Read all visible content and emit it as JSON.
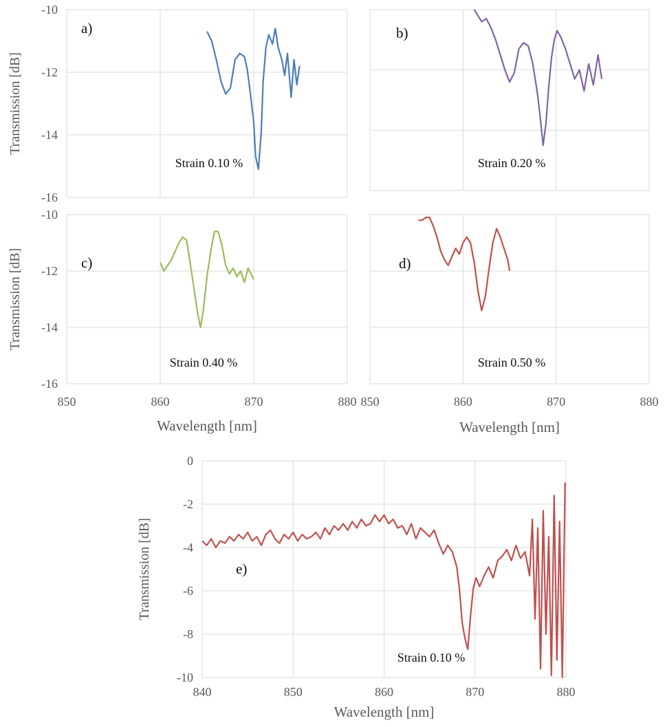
{
  "colors": {
    "grid": "#d9d9d9",
    "axis_text": "#595959"
  },
  "chart_data": [
    {
      "id": "a",
      "type": "line",
      "panel_label": "a)",
      "annotation": "Strain 0.10 %",
      "ylabel": "Transmission [dB]",
      "xlabel": "",
      "xlim": [
        850,
        880
      ],
      "ylim": [
        -16,
        -10
      ],
      "grid": true,
      "color": "#4a7ebb",
      "x_tick_labels": [],
      "y_tick_labels": [
        "-10",
        "-12",
        "-14",
        "-16"
      ],
      "series": [
        {
          "x": [
            865,
            865.5,
            866,
            866.5,
            867,
            867.5,
            868,
            868.5,
            869,
            869.3,
            869.6,
            870,
            870.2,
            870.5,
            870.8,
            871,
            871.3,
            871.6,
            872,
            872.3,
            872.6,
            873,
            873.3,
            873.6,
            874,
            874.3,
            874.6,
            874.9
          ],
          "y": [
            -10.7,
            -11.0,
            -11.6,
            -12.3,
            -12.7,
            -12.5,
            -11.6,
            -11.4,
            -11.5,
            -11.9,
            -12.6,
            -13.6,
            -14.7,
            -15.1,
            -13.9,
            -12.3,
            -11.2,
            -10.8,
            -11.1,
            -10.6,
            -11.2,
            -11.6,
            -12.1,
            -11.4,
            -12.8,
            -11.6,
            -12.4,
            -11.8
          ]
        }
      ]
    },
    {
      "id": "b",
      "type": "line",
      "panel_label": "b)",
      "annotation": "Strain 0.20 %",
      "ylabel": "",
      "xlabel": "",
      "xlim": [
        850,
        880
      ],
      "ylim": [
        -16,
        -10
      ],
      "grid": true,
      "color": "#8064a2",
      "x_tick_labels": [],
      "y_tick_labels": [],
      "series": [
        {
          "x": [
            861.2,
            861.6,
            862,
            862.5,
            863,
            863.5,
            864,
            864.5,
            865,
            865.5,
            866,
            866.5,
            867,
            867.5,
            868,
            868.3,
            868.6,
            868.9,
            869.2,
            869.5,
            869.8,
            870.1,
            870.5,
            871,
            871.5,
            872,
            872.5,
            873,
            873.5,
            874,
            874.5,
            874.9
          ],
          "y": [
            -10.0,
            -10.2,
            -10.4,
            -10.3,
            -10.6,
            -11.0,
            -11.5,
            -12.0,
            -12.4,
            -12.1,
            -11.3,
            -11.1,
            -11.2,
            -11.8,
            -12.8,
            -13.6,
            -14.5,
            -13.8,
            -12.6,
            -11.6,
            -11.0,
            -10.7,
            -10.9,
            -11.3,
            -11.8,
            -12.3,
            -12.0,
            -12.7,
            -11.8,
            -12.5,
            -11.5,
            -12.3
          ]
        }
      ]
    },
    {
      "id": "c",
      "type": "line",
      "panel_label": "c)",
      "annotation": "Strain 0.40 %",
      "ylabel": "Transmission [dB]",
      "xlabel": "",
      "xlim": [
        850,
        880
      ],
      "ylim": [
        -16,
        -10
      ],
      "grid": true,
      "color": "#9bbb59",
      "x_tick_labels": [],
      "y_tick_labels": [
        "-10",
        "-12",
        "-14",
        "-16"
      ],
      "series": [
        {
          "x": [
            860,
            860.4,
            860.8,
            861.2,
            861.6,
            862,
            862.4,
            862.8,
            863.2,
            863.6,
            864,
            864.3,
            864.6,
            865,
            865.4,
            865.8,
            866.2,
            866.6,
            867,
            867.4,
            867.8,
            868.2,
            868.6,
            869,
            869.4,
            869.7,
            870
          ],
          "y": [
            -11.7,
            -12.0,
            -11.8,
            -11.6,
            -11.3,
            -11.0,
            -10.8,
            -10.9,
            -11.7,
            -12.6,
            -13.5,
            -14.0,
            -13.4,
            -12.2,
            -11.3,
            -10.6,
            -10.6,
            -11.1,
            -11.8,
            -12.1,
            -11.9,
            -12.2,
            -12.0,
            -12.4,
            -11.9,
            -12.1,
            -12.3
          ]
        }
      ]
    },
    {
      "id": "d",
      "type": "line",
      "panel_label": "d)",
      "annotation": "Strain 0.50 %",
      "ylabel": "",
      "xlabel": "",
      "xlim": [
        850,
        880
      ],
      "ylim": [
        -16,
        -10
      ],
      "grid": true,
      "color": "#c0504d",
      "x_tick_labels": [],
      "y_tick_labels": [],
      "series": [
        {
          "x": [
            855.2,
            855.6,
            856,
            856.4,
            856.8,
            857.2,
            857.6,
            858,
            858.4,
            858.8,
            859.2,
            859.6,
            860,
            860.4,
            860.8,
            861.2,
            861.6,
            862,
            862.4,
            862.8,
            863.2,
            863.6,
            864,
            864.4,
            864.8,
            865
          ],
          "y": [
            -10.2,
            -10.2,
            -10.1,
            -10.1,
            -10.4,
            -10.8,
            -11.3,
            -11.6,
            -11.8,
            -11.5,
            -11.2,
            -11.4,
            -11.0,
            -10.8,
            -11.0,
            -11.7,
            -12.7,
            -13.4,
            -12.9,
            -11.9,
            -11.0,
            -10.5,
            -10.8,
            -11.2,
            -11.6,
            -12.0
          ]
        }
      ]
    },
    {
      "id": "e",
      "type": "line",
      "panel_label": "e)",
      "annotation": "Strain 0.10 %",
      "ylabel": "Transmission [dB]",
      "xlabel": "Wavelength [nm]",
      "xlim": [
        840,
        880
      ],
      "ylim": [
        -10,
        0
      ],
      "grid": true,
      "color": "#c0504d",
      "x_tick_labels": [
        "840",
        "850",
        "860",
        "870",
        "880"
      ],
      "y_tick_labels": [
        "0",
        "-2",
        "-4",
        "-6",
        "-8",
        "-10"
      ],
      "series": [
        {
          "x": [
            840,
            840.5,
            841,
            841.5,
            842,
            842.5,
            843,
            843.5,
            844,
            844.5,
            845,
            845.5,
            846,
            846.5,
            847,
            847.5,
            848,
            848.5,
            849,
            849.5,
            850,
            850.5,
            851,
            851.5,
            852,
            852.5,
            853,
            853.5,
            854,
            854.5,
            855,
            855.5,
            856,
            856.5,
            857,
            857.5,
            858,
            858.5,
            859,
            859.5,
            860,
            860.5,
            861,
            861.5,
            862,
            862.5,
            863,
            863.5,
            864,
            864.5,
            865,
            865.5,
            866,
            866.5,
            867,
            867.5,
            868,
            868.3,
            868.6,
            868.9,
            869.2,
            869.5,
            869.8,
            870.1,
            870.5,
            871,
            871.5,
            872,
            872.5,
            873,
            873.5,
            874,
            874.5,
            875,
            875.5,
            876,
            876.3,
            876.6,
            876.9,
            877.2,
            877.5,
            877.8,
            878.1,
            878.4,
            878.7,
            879,
            879.3,
            879.6,
            879.9
          ],
          "y": [
            -3.7,
            -3.9,
            -3.6,
            -4.0,
            -3.7,
            -3.8,
            -3.5,
            -3.7,
            -3.4,
            -3.6,
            -3.3,
            -3.7,
            -3.5,
            -3.9,
            -3.4,
            -3.2,
            -3.6,
            -3.8,
            -3.4,
            -3.6,
            -3.3,
            -3.7,
            -3.4,
            -3.6,
            -3.5,
            -3.3,
            -3.6,
            -3.1,
            -3.4,
            -3.0,
            -3.2,
            -2.9,
            -3.2,
            -2.8,
            -3.1,
            -2.7,
            -3.0,
            -2.9,
            -2.5,
            -2.8,
            -2.5,
            -2.9,
            -2.7,
            -3.1,
            -3.0,
            -3.4,
            -2.9,
            -3.6,
            -3.1,
            -3.3,
            -3.5,
            -3.2,
            -3.8,
            -4.3,
            -3.9,
            -4.2,
            -4.9,
            -6.0,
            -7.5,
            -8.2,
            -8.7,
            -7.2,
            -5.9,
            -5.4,
            -5.8,
            -5.3,
            -4.9,
            -5.4,
            -4.6,
            -4.4,
            -4.1,
            -4.6,
            -3.9,
            -4.5,
            -4.2,
            -5.3,
            -2.7,
            -7.3,
            -3.1,
            -9.6,
            -2.3,
            -8.0,
            -3.5,
            -9.9,
            -1.6,
            -9.2,
            -2.8,
            -10.0,
            -1.0
          ]
        }
      ]
    }
  ],
  "shared": {
    "x_tick_labels_left": [
      "850",
      "860",
      "870",
      "880"
    ],
    "x_tick_labels_right": [
      "850",
      "860",
      "870",
      "880"
    ],
    "xlabel_left": "Wavelength [nm]",
    "xlabel_right": "Wavelength [nm]"
  }
}
